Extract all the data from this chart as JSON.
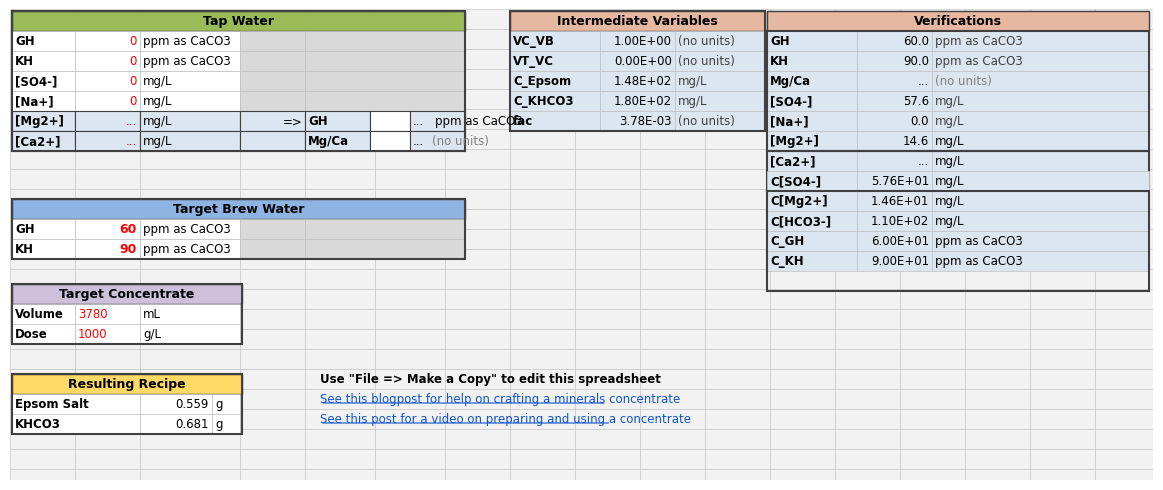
{
  "fig_width": 11.43,
  "fig_height": 4.71,
  "bg_color": "#ffffff",
  "grid_color": "#c0c0c0",
  "cell_bg_light": "#dce6f1",
  "cell_bg_lighter": "#e8f0fb",
  "tap_water": {
    "title": "Tap Water",
    "header_color": "#9bbb59",
    "rows": [
      {
        "label": "GH",
        "value": "0",
        "unit": "ppm as CaCO3",
        "val_color": "#ff0000"
      },
      {
        "label": "KH",
        "value": "0",
        "unit": "ppm as CaCO3",
        "val_color": "#ff0000"
      },
      {
        "label": "[SO4-]",
        "value": "0",
        "unit": "mg/L",
        "val_color": "#ff0000"
      },
      {
        "label": "[Na+]",
        "value": "0",
        "unit": "mg/L",
        "val_color": "#ff0000"
      }
    ],
    "rows2": [
      {
        "label": "[Mg2+]",
        "value": "...",
        "unit": "mg/L",
        "val_color": "#ff0000",
        "arrow": "=>",
        "gh_label": "GH",
        "gh_val": "...",
        "gh_unit": "ppm as CaCO3"
      },
      {
        "label": "[Ca2+]",
        "value": "...",
        "unit": "mg/L",
        "val_color": "#ff0000",
        "arrow": "",
        "mgca_label": "Mg/Ca",
        "mgca_val": "...",
        "mgca_unit": "(no units)"
      }
    ]
  },
  "target_brew": {
    "title": "Target Brew Water",
    "header_color": "#8db4e2",
    "rows": [
      {
        "label": "GH",
        "value": "60",
        "unit": "ppm as CaCO3",
        "val_color": "#ff0000"
      },
      {
        "label": "KH",
        "value": "90",
        "unit": "ppm as CaCO3",
        "val_color": "#ff0000"
      }
    ]
  },
  "target_conc": {
    "title": "Target Concentrate",
    "header_color": "#ccc0da",
    "rows": [
      {
        "label": "Volume",
        "value": "3780",
        "unit": "mL",
        "val_color": "#ff0000"
      },
      {
        "label": "Dose",
        "value": "1000",
        "unit": "g/L",
        "val_color": "#ff0000"
      }
    ]
  },
  "recipe": {
    "title": "Resulting Recipe",
    "header_color": "#ffd965",
    "rows": [
      {
        "label": "Epsom Salt",
        "value": "0.559",
        "unit": "g"
      },
      {
        "label": "KHCO3",
        "value": "0.681",
        "unit": "g"
      }
    ]
  },
  "intermediate": {
    "title": "Intermediate Variables",
    "header_color": "#e6b8a2",
    "rows": [
      {
        "label": "VC_VB",
        "value": "1.00E+00",
        "unit": "(no units)"
      },
      {
        "label": "VT_VC",
        "value": "0.00E+00",
        "unit": "(no units)"
      },
      {
        "label": "C_Epsom",
        "value": "1.48E+02",
        "unit": "mg/L"
      },
      {
        "label": "C_KHCO3",
        "value": "1.80E+02",
        "unit": "mg/L"
      },
      {
        "label": "fac",
        "value": "3.78E-03",
        "unit": "(no units)"
      }
    ]
  },
  "verifications": {
    "title": "Verifications",
    "header_color": "#e6b8a2",
    "rows_section1": [
      {
        "label": "GH",
        "value": "60.0",
        "unit": "ppm as CaCO3"
      },
      {
        "label": "KH",
        "value": "90.0",
        "unit": "ppm as CaCO3"
      },
      {
        "label": "Mg/Ca",
        "value": "...",
        "unit": "(no units)",
        "unit_color": "#808080"
      },
      {
        "label": "[SO4-]",
        "value": "57.6",
        "unit": "mg/L"
      },
      {
        "label": "[Na+]",
        "value": "0.0",
        "unit": "mg/L"
      }
    ],
    "rows_section2": [
      {
        "label": "[Mg2+]",
        "value": "14.6",
        "unit": "mg/L"
      },
      {
        "label": "[Ca2+]",
        "value": "...",
        "unit": "mg/L"
      }
    ],
    "rows_section3": [
      {
        "label": "C[SO4-]",
        "value": "5.76E+01",
        "unit": "mg/L"
      },
      {
        "label": "C[Mg2+]",
        "value": "1.46E+01",
        "unit": "mg/L"
      },
      {
        "label": "C[HCO3-]",
        "value": "1.10E+02",
        "unit": "mg/L"
      },
      {
        "label": "C_GH",
        "value": "6.00E+01",
        "unit": "ppm as CaCO3"
      },
      {
        "label": "C_KH",
        "value": "9.00E+01",
        "unit": "ppm as CaCO3"
      }
    ]
  },
  "note_text": "Use \"File => Make a Copy\" to edit this spreadsheet",
  "link1": "See this blogpost for help on crafting a minerals concentrate",
  "link2": "See this post for a video on preparing and using a concentrate"
}
